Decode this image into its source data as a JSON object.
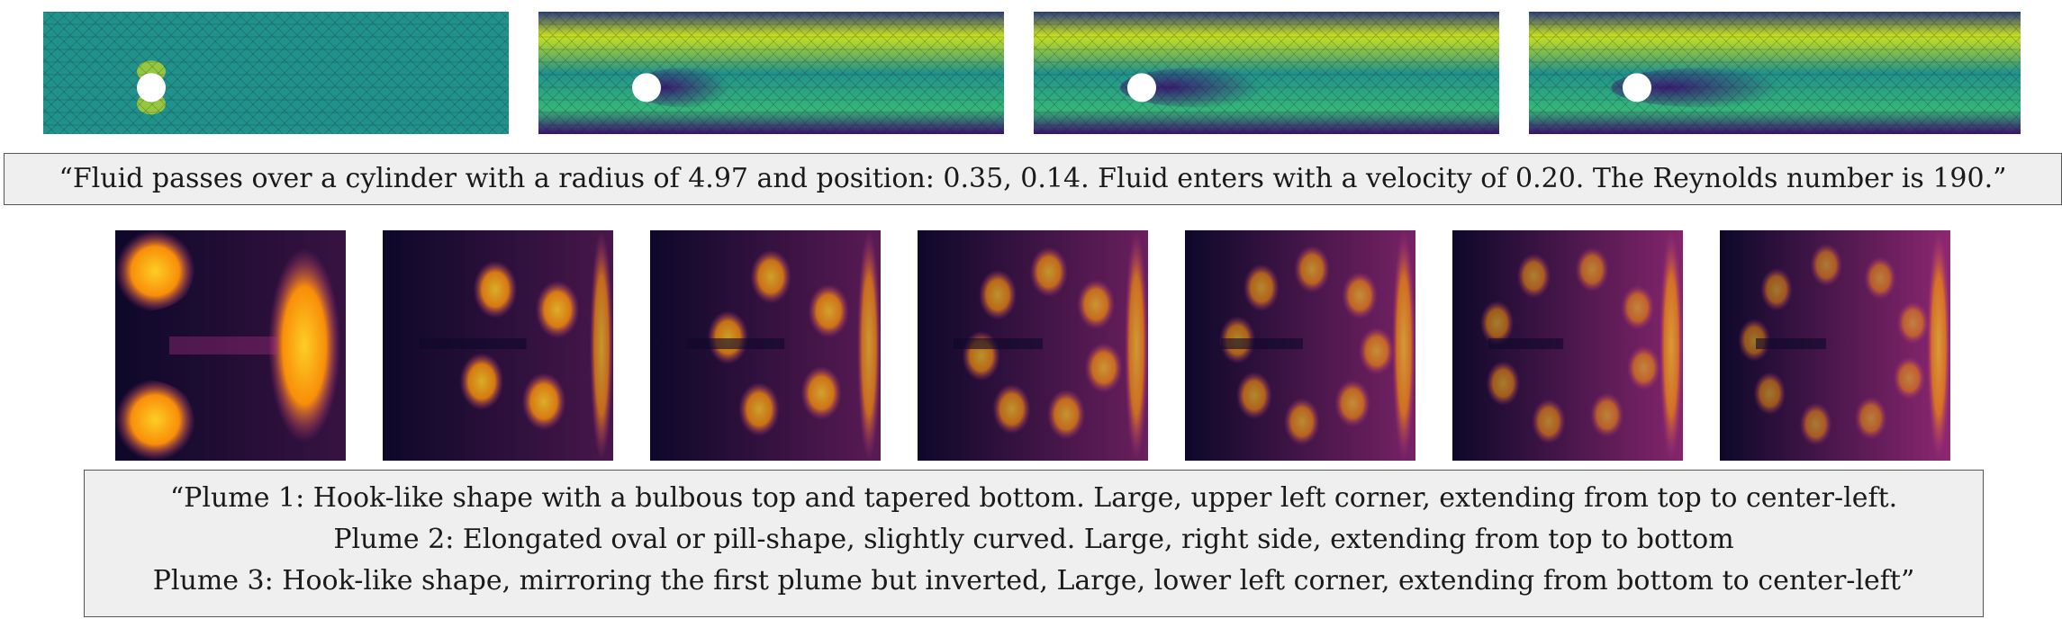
{
  "captions": {
    "cylinder": "“Fluid passes over a cylinder with a radius of 4.97 and position: 0.35, 0.14. Fluid enters with a velocity of 0.20. The Reynolds number is 190.”",
    "plume_line1": "“Plume 1: Hook-like shape with a bulbous top and tapered bottom. Large, upper left corner, extending from top to center-left.",
    "plume_line2": "Plume 2: Elongated oval or pill-shape, slightly curved. Large, right side, extending from top to bottom",
    "plume_line3": "Plume 3: Hook-like shape, mirroring the first plume but inverted, Large, lower left corner, extending from bottom to center-left”"
  },
  "colors": {
    "viridis_dark": "#3b0f70",
    "viridis_mid": "#21918c",
    "viridis_bright": "#c8e020",
    "inferno_dark": "#0d0829",
    "inferno_mid": "#b83289",
    "inferno_bright": "#fcce25",
    "cylinder": "#ffffff"
  },
  "flow_frames": [
    {
      "wake": 0.05
    },
    {
      "wake": 0.55
    },
    {
      "wake": 0.8
    },
    {
      "wake": 0.95
    }
  ],
  "plume_frames": [
    {
      "turbulence": 0.0
    },
    {
      "turbulence": 0.2
    },
    {
      "turbulence": 0.4
    },
    {
      "turbulence": 0.6
    },
    {
      "turbulence": 0.75
    },
    {
      "turbulence": 0.9
    },
    {
      "turbulence": 1.0
    }
  ]
}
